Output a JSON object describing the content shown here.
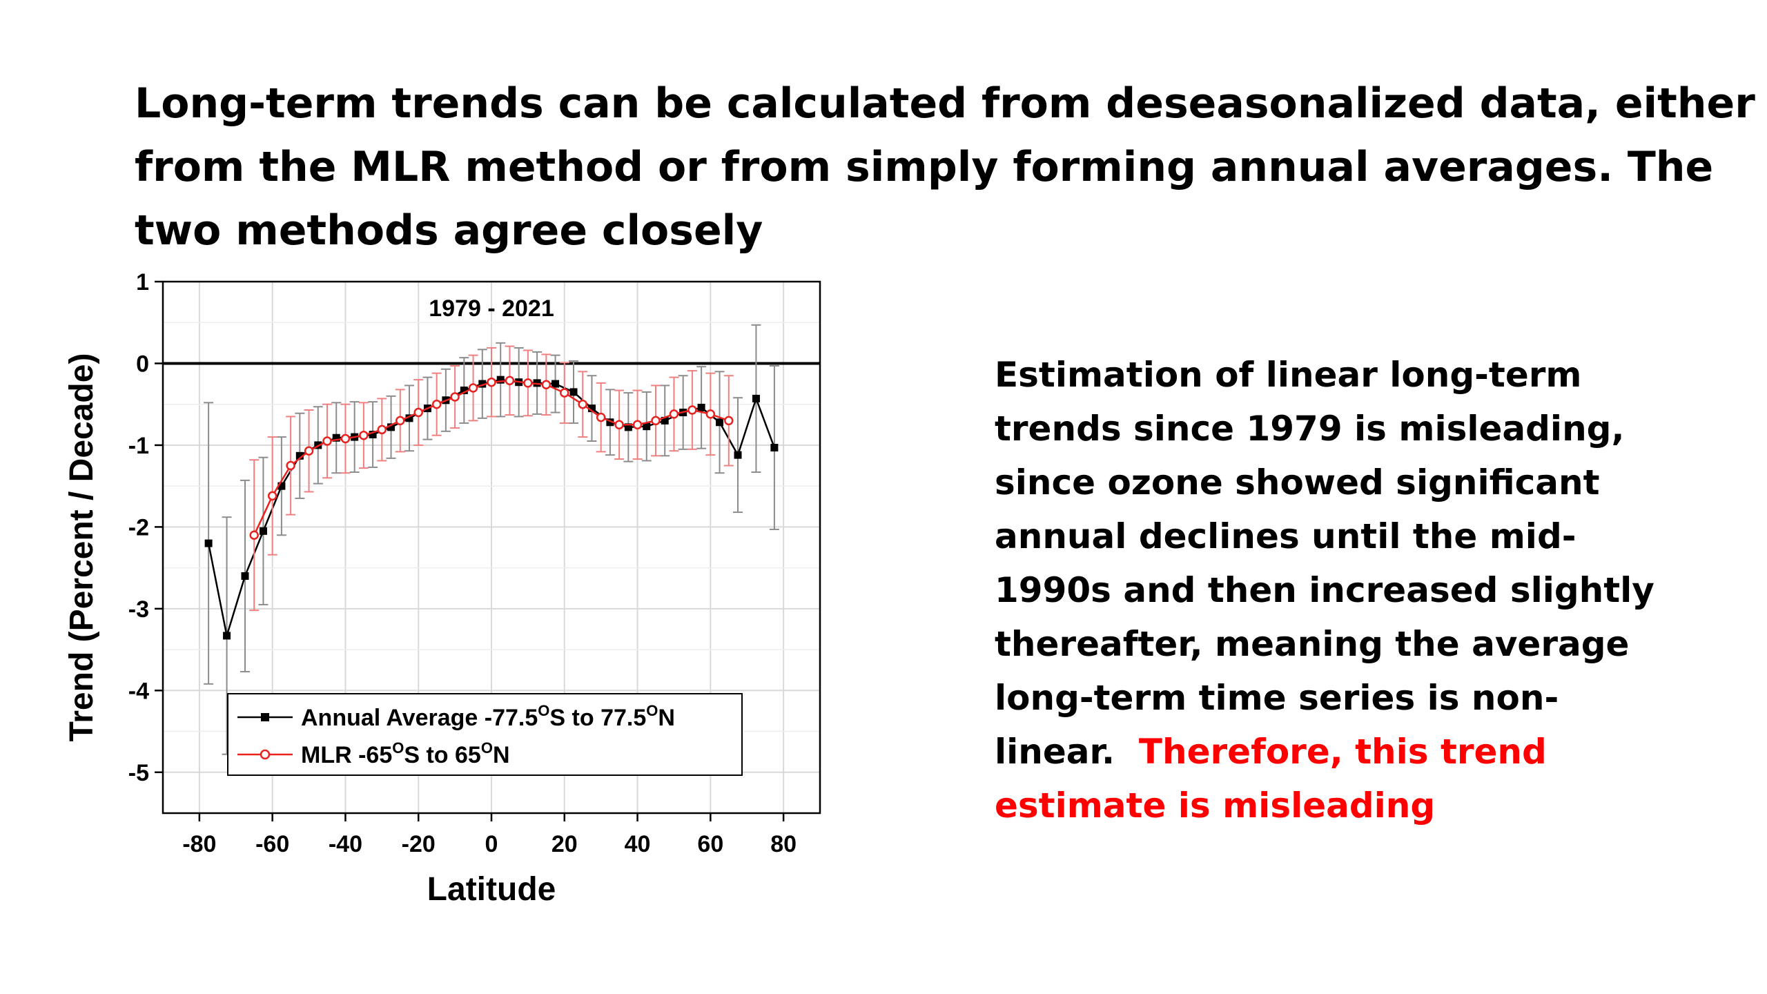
{
  "slide": {
    "title_lines": [
      "Long-term trends can be calculated from deseasonalized data, either",
      "from the MLR method or from simply forming annual averages. The",
      "two methods agree closely"
    ],
    "side_text_lines": [
      "Estimation of linear long-term",
      "trends since 1979 is misleading,",
      "since ozone showed significant",
      "annual declines until the mid-",
      "1990s and then increased slightly",
      "thereafter, meaning the average",
      "long-term time series is non-"
    ],
    "side_text_last_black": "linear.",
    "side_text_red_1": "Therefore, this trend",
    "side_text_red_2": "estimate is misleading",
    "red_color": "#ff0000"
  },
  "chart_data": {
    "type": "line",
    "annotation": "1979 - 2021",
    "xlabel": "Latitude",
    "ylabel": "Trend (Percent / Decade)",
    "xlim": [
      -90,
      90
    ],
    "ylim": [
      -5.5,
      1
    ],
    "xticks": [
      -80,
      -60,
      -40,
      -20,
      0,
      20,
      40,
      60,
      80
    ],
    "yticks": [
      1,
      0,
      -1,
      -2,
      -3,
      -4,
      -5
    ],
    "grid": true,
    "zero_line": true,
    "legend_position": "bottom-left",
    "series": [
      {
        "name": "Annual Average -77.5",
        "legend_parts": [
          "Annual Average -77.5",
          "O",
          "S to 77.5",
          "O",
          "N"
        ],
        "color": "#000000",
        "marker": "square",
        "x": [
          -77.5,
          -72.5,
          -67.5,
          -62.5,
          -57.5,
          -52.5,
          -47.5,
          -42.5,
          -37.5,
          -32.5,
          -27.5,
          -22.5,
          -17.5,
          -12.5,
          -7.5,
          -2.5,
          2.5,
          7.5,
          12.5,
          17.5,
          22.5,
          27.5,
          32.5,
          37.5,
          42.5,
          47.5,
          52.5,
          57.5,
          62.5,
          67.5,
          72.5,
          77.5
        ],
        "y": [
          -2.2,
          -3.33,
          -2.6,
          -2.05,
          -1.5,
          -1.13,
          -1.0,
          -0.91,
          -0.9,
          -0.87,
          -0.78,
          -0.67,
          -0.55,
          -0.45,
          -0.33,
          -0.25,
          -0.2,
          -0.23,
          -0.24,
          -0.25,
          -0.35,
          -0.55,
          -0.72,
          -0.78,
          -0.77,
          -0.7,
          -0.6,
          -0.54,
          -0.72,
          -1.12,
          -0.43,
          -1.03
        ],
        "err": [
          1.72,
          1.45,
          1.17,
          0.9,
          0.6,
          0.52,
          0.47,
          0.43,
          0.43,
          0.4,
          0.38,
          0.4,
          0.38,
          0.38,
          0.4,
          0.42,
          0.45,
          0.42,
          0.38,
          0.35,
          0.38,
          0.4,
          0.4,
          0.42,
          0.42,
          0.43,
          0.45,
          0.5,
          0.62,
          0.7,
          0.9,
          1.0
        ]
      },
      {
        "name": "MLR -65",
        "legend_parts": [
          "MLR -65",
          "O",
          "S to 65",
          "O",
          "N"
        ],
        "color": "#e8221f",
        "marker": "circle",
        "x": [
          -65,
          -60,
          -55,
          -50,
          -45,
          -40,
          -35,
          -30,
          -25,
          -20,
          -15,
          -10,
          -5,
          0,
          5,
          10,
          15,
          20,
          25,
          30,
          35,
          40,
          45,
          50,
          55,
          60,
          65
        ],
        "y": [
          -2.1,
          -1.62,
          -1.25,
          -1.07,
          -0.95,
          -0.92,
          -0.88,
          -0.81,
          -0.7,
          -0.6,
          -0.5,
          -0.41,
          -0.3,
          -0.23,
          -0.21,
          -0.24,
          -0.26,
          -0.36,
          -0.5,
          -0.66,
          -0.75,
          -0.75,
          -0.7,
          -0.62,
          -0.57,
          -0.62,
          -0.7
        ],
        "err": [
          0.92,
          0.72,
          0.6,
          0.5,
          0.45,
          0.42,
          0.4,
          0.38,
          0.38,
          0.4,
          0.38,
          0.38,
          0.4,
          0.42,
          0.42,
          0.4,
          0.37,
          0.37,
          0.4,
          0.42,
          0.42,
          0.42,
          0.43,
          0.45,
          0.48,
          0.5,
          0.55
        ]
      }
    ]
  }
}
